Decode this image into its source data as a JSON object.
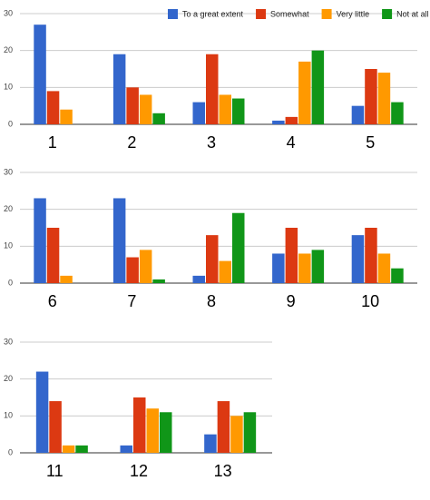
{
  "chart_data": [
    {
      "type": "bar",
      "categories": [
        "1",
        "2",
        "3",
        "4",
        "5"
      ],
      "series": [
        {
          "name": "To a great extent",
          "color": "#3366cc",
          "values": [
            27,
            19,
            6,
            1,
            5
          ]
        },
        {
          "name": "Somewhat",
          "color": "#dc3912",
          "values": [
            9,
            10,
            19,
            2,
            15
          ]
        },
        {
          "name": "Very little",
          "color": "#ff9900",
          "values": [
            4,
            8,
            8,
            17,
            14
          ]
        },
        {
          "name": "Not at all",
          "color": "#109618",
          "values": [
            0,
            3,
            7,
            20,
            6
          ]
        }
      ],
      "ylim": [
        0,
        30
      ],
      "yticks": [
        0,
        10,
        20,
        30
      ],
      "grid": true,
      "legend": "top-right"
    },
    {
      "type": "bar",
      "categories": [
        "6",
        "7",
        "8",
        "9",
        "10"
      ],
      "series": [
        {
          "color": "#3366cc",
          "values": [
            23,
            23,
            2,
            8,
            13
          ]
        },
        {
          "color": "#dc3912",
          "values": [
            15,
            7,
            13,
            15,
            15
          ]
        },
        {
          "color": "#ff9900",
          "values": [
            2,
            9,
            6,
            8,
            8
          ]
        },
        {
          "color": "#109618",
          "values": [
            0,
            1,
            19,
            9,
            4
          ]
        }
      ],
      "ylim": [
        0,
        30
      ],
      "yticks": [
        0,
        10,
        20,
        30
      ],
      "grid": true
    },
    {
      "type": "bar",
      "categories": [
        "11",
        "12",
        "13"
      ],
      "series": [
        {
          "color": "#3366cc",
          "values": [
            22,
            2,
            5
          ]
        },
        {
          "color": "#dc3912",
          "values": [
            14,
            15,
            14
          ]
        },
        {
          "color": "#ff9900",
          "values": [
            2,
            12,
            10
          ]
        },
        {
          "color": "#109618",
          "values": [
            2,
            11,
            11
          ]
        }
      ],
      "ylim": [
        0,
        30
      ],
      "yticks": [
        0,
        10,
        20,
        30
      ],
      "grid": true
    }
  ]
}
